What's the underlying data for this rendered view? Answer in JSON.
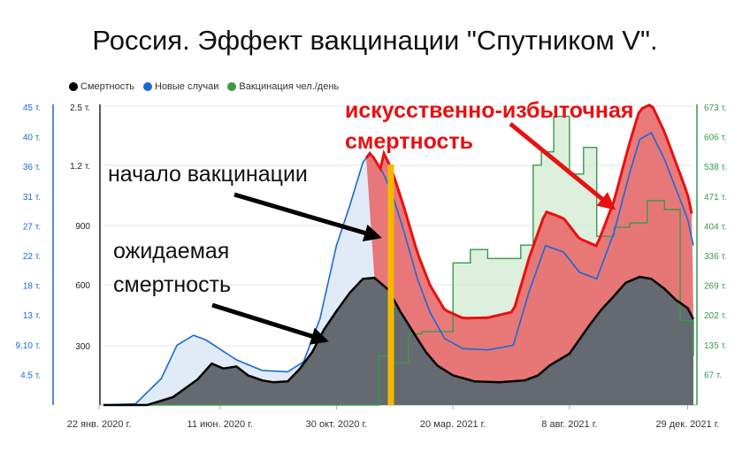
{
  "chart_data": {
    "type": "area",
    "title": "Россия. Эффект вакцинации \"Спутником V\".",
    "legend": [
      {
        "name": "Смертность",
        "color": "#000000"
      },
      {
        "name": "Новые случаи",
        "color": "#1a6ad6"
      },
      {
        "name": "Вакцинация чел./день",
        "color": "#3a9a4a"
      }
    ],
    "axes": {
      "left_outer": [
        "45 т.",
        "40 т.",
        "36 т.",
        "31 т.",
        "27 т.",
        "22 т.",
        "18 т.",
        "13 т.",
        "9.10 т.",
        "4.5 т."
      ],
      "left_inner": [
        "2.5 т.",
        "1.2 т.",
        "900",
        "600",
        "300"
      ],
      "right": [
        "673 т.",
        "606 т.",
        "538 т.",
        "471 т.",
        "404 т.",
        "336 т.",
        "269 т.",
        "202 т.",
        "135 т.",
        "67 т."
      ],
      "x": [
        "22 янв. 2020 г.",
        "11 июн. 2020 г.",
        "30 окт. 2020 г.",
        "20 мар. 2021 г.",
        "8 авг. 2021 г.",
        "29 дек. 2021 г."
      ]
    },
    "series": [
      {
        "name": "Смертность",
        "x": [
          "2020-01-22",
          "2020-03-15",
          "2020-04-15",
          "2020-05-15",
          "2020-06-01",
          "2020-06-15",
          "2020-07-01",
          "2020-07-15",
          "2020-08-01",
          "2020-08-15",
          "2020-09-01",
          "2020-09-15",
          "2020-10-01",
          "2020-10-15",
          "2020-10-30",
          "2020-11-15",
          "2020-12-01",
          "2020-12-15",
          "2021-01-01",
          "2021-01-15",
          "2021-02-01",
          "2021-02-15",
          "2021-03-01",
          "2021-03-20",
          "2021-04-15",
          "2021-05-15",
          "2021-06-15",
          "2021-07-01",
          "2021-07-15",
          "2021-08-08",
          "2021-09-01",
          "2021-09-15",
          "2021-10-01",
          "2021-10-15",
          "2021-11-01",
          "2021-11-15",
          "2021-12-01",
          "2021-12-15",
          "2021-12-29",
          "2022-01-05"
        ],
        "values": [
          0,
          0,
          40,
          130,
          210,
          185,
          195,
          150,
          125,
          115,
          120,
          180,
          270,
          380,
          470,
          560,
          630,
          635,
          575,
          470,
          360,
          270,
          200,
          150,
          120,
          115,
          125,
          150,
          200,
          260,
          400,
          475,
          545,
          610,
          640,
          630,
          580,
          525,
          485,
          430
        ]
      },
      {
        "name": "Новые случаи",
        "x": [
          "2020-01-22",
          "2020-03-01",
          "2020-04-01",
          "2020-04-20",
          "2020-05-10",
          "2020-05-25",
          "2020-06-10",
          "2020-07-01",
          "2020-08-01",
          "2020-09-01",
          "2020-09-20",
          "2020-10-10",
          "2020-10-30",
          "2020-11-15",
          "2020-12-01",
          "2020-12-10",
          "2020-12-25",
          "2021-01-05",
          "2021-01-20",
          "2021-02-05",
          "2021-02-20",
          "2021-03-10",
          "2021-04-01",
          "2021-05-01",
          "2021-06-01",
          "2021-06-20",
          "2021-07-10",
          "2021-08-01",
          "2021-08-20",
          "2021-09-10",
          "2021-10-01",
          "2021-10-20",
          "2021-11-01",
          "2021-11-15",
          "2021-12-01",
          "2021-12-29",
          "2022-01-05"
        ],
        "values": [
          0,
          200,
          4000,
          9000,
          10500,
          9800,
          8500,
          6800,
          5200,
          5000,
          6500,
          13000,
          24000,
          30000,
          36500,
          38000,
          35000,
          32000,
          26000,
          19000,
          14000,
          10000,
          8500,
          8300,
          9000,
          17000,
          24000,
          23000,
          20000,
          19000,
          26000,
          35000,
          40000,
          41000,
          37000,
          28000,
          24000
        ]
      },
      {
        "name": "Вакцинация чел./день",
        "x": [
          "2020-01-22",
          "2020-12-05",
          "2020-12-20",
          "2021-01-05",
          "2021-01-25",
          "2021-02-10",
          "2021-03-01",
          "2021-03-20",
          "2021-04-10",
          "2021-05-01",
          "2021-05-20",
          "2021-06-10",
          "2021-06-25",
          "2021-07-05",
          "2021-07-20",
          "2021-08-08",
          "2021-08-25",
          "2021-09-10",
          "2021-10-01",
          "2021-10-20",
          "2021-11-10",
          "2021-12-01",
          "2021-12-20",
          "2022-01-05"
        ],
        "values": [
          0,
          0,
          110000,
          95000,
          160000,
          165000,
          165000,
          320000,
          350000,
          330000,
          330000,
          360000,
          540000,
          570000,
          650000,
          520000,
          580000,
          380000,
          400000,
          410000,
          460000,
          440000,
          190000,
          110000
        ]
      }
    ],
    "annotations": [
      "начало вакцинации",
      "ожидаемая",
      "смертность",
      "искусственно-избыточная",
      "смертность"
    ]
  }
}
